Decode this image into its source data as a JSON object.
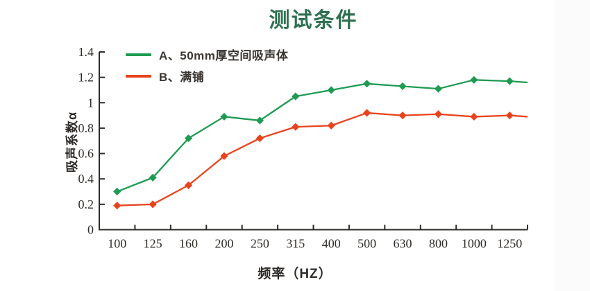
{
  "page": {
    "title": "测试条件"
  },
  "chart_data": {
    "type": "line",
    "title": "测试条件",
    "xlabel": "频率（HZ）",
    "ylabel": "吸声系数α",
    "categories": [
      "100",
      "125",
      "160",
      "200",
      "250",
      "315",
      "400",
      "500",
      "630",
      "800",
      "1000",
      "1250"
    ],
    "ytick_labels": [
      "0",
      "0.2",
      "0.4",
      "0.6",
      "0.8",
      "1",
      "1.2",
      "1.4"
    ],
    "ylim": [
      0,
      1.4
    ],
    "grid": false,
    "legend_position": "top-left-inside",
    "marker": "diamond",
    "series": [
      {
        "name": "A、50mm厚空间吸声体",
        "color": "#1e9b53",
        "values": [
          0.3,
          0.41,
          0.72,
          0.89,
          0.86,
          1.05,
          1.1,
          1.15,
          1.13,
          1.11,
          1.18,
          1.17
        ],
        "edge_value": 1.16
      },
      {
        "name": "B、满铺",
        "color": "#e8431d",
        "values": [
          0.19,
          0.2,
          0.35,
          0.58,
          0.72,
          0.81,
          0.82,
          0.92,
          0.9,
          0.91,
          0.89,
          0.9
        ],
        "edge_value": 0.89
      }
    ],
    "colors": {
      "title": "#2f7050",
      "axis": "#2e2b28",
      "tick_label": "#2e2b28",
      "legend_text": "#3a3632"
    }
  }
}
